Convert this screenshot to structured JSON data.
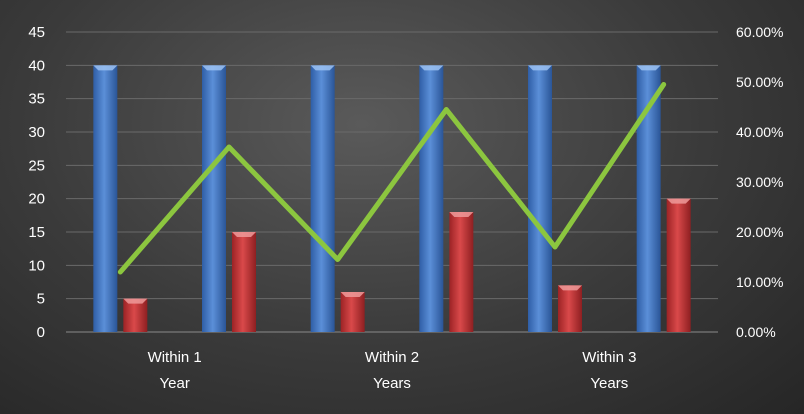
{
  "chart_data": {
    "type": "bar",
    "categories": [
      "Within 1\nYear",
      "",
      "Within 2\nYears",
      "",
      "Within 3\nYears",
      ""
    ],
    "series": [
      {
        "type": "bar",
        "axis": "left",
        "values": [
          40,
          40,
          40,
          40,
          40,
          40
        ],
        "color": "#4a7cc8"
      },
      {
        "type": "bar",
        "axis": "left",
        "values": [
          5,
          15,
          6,
          18,
          7,
          20
        ],
        "color": "#c0393b"
      },
      {
        "type": "line",
        "axis": "right",
        "values": [
          0.12,
          0.37,
          0.145,
          0.445,
          0.17,
          0.495
        ],
        "color": "#8cc63f"
      }
    ],
    "y_left": {
      "min": 0,
      "max": 45,
      "step": 5,
      "ticks": [
        "0",
        "5",
        "10",
        "15",
        "20",
        "25",
        "30",
        "35",
        "40",
        "45"
      ]
    },
    "y_right": {
      "min": 0,
      "max": 0.6,
      "step": 0.1,
      "ticks": [
        "0.00%",
        "10.00%",
        "20.00%",
        "30.00%",
        "40.00%",
        "50.00%",
        "60.00%"
      ]
    },
    "grid": true,
    "legend": "none",
    "title": "",
    "xlabel": "",
    "ylabel": ""
  }
}
